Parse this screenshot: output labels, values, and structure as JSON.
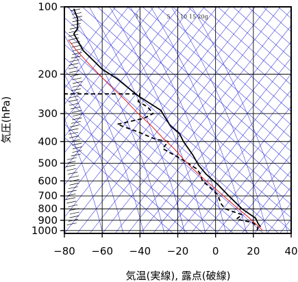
{
  "chart_data": {
    "type": "line",
    "subtype": "skew-T log-P thermodynamic diagram",
    "xlabel": "気温(実線), 露点(破線)",
    "ylabel": "気圧(hPa)",
    "xlim": [
      -80,
      40
    ],
    "ylim": [
      1030,
      100
    ],
    "y_scale": "log",
    "x_ticks": [
      -80,
      -60,
      -40,
      -20,
      0,
      20,
      40
    ],
    "x_tick_labels": [
      "−80",
      "−60",
      "−40",
      "−20",
      "0",
      "20",
      "40"
    ],
    "y_ticks": [
      100,
      200,
      300,
      400,
      500,
      600,
      700,
      800,
      900,
      1000
    ],
    "y_tick_labels": [
      "100",
      "200",
      "300",
      "400",
      "500",
      "600",
      "700",
      "800",
      "900",
      "1000"
    ],
    "mixing_ratio_labels": [
      "1",
      "5",
      "10",
      "15",
      "20g"
    ],
    "series": [
      {
        "role": "temperature",
        "style": "solid",
        "color": "#000000",
        "points": [
          [
            23.8,
            963
          ],
          [
            22.5,
            930
          ],
          [
            21.2,
            880
          ],
          [
            14,
            800
          ],
          [
            7,
            700
          ],
          [
            1,
            620
          ],
          [
            -5,
            560
          ],
          [
            -9,
            510
          ],
          [
            -12,
            460
          ],
          [
            -17,
            400
          ],
          [
            -19,
            370
          ],
          [
            -24,
            340
          ],
          [
            -29,
            290
          ],
          [
            -41,
            250
          ],
          [
            -52,
            210
          ],
          [
            -60,
            190
          ],
          [
            -70,
            157
          ],
          [
            -75,
            132
          ],
          [
            -73,
            125
          ],
          [
            -73,
            113
          ],
          [
            -75,
            102
          ]
        ]
      },
      {
        "role": "dewpoint",
        "style": "dashed",
        "color": "#000000",
        "points": [
          [
            22,
            995
          ],
          [
            22.5,
            960
          ],
          [
            19.5,
            920
          ],
          [
            11,
            890
          ],
          [
            14,
            850
          ],
          [
            5,
            800
          ],
          [
            3,
            760
          ],
          [
            1,
            690
          ],
          [
            -4,
            630
          ],
          [
            -7,
            600
          ],
          [
            -8,
            560
          ],
          [
            -10,
            530
          ],
          [
            -18,
            480
          ],
          [
            -28,
            430
          ],
          [
            -25,
            400
          ],
          [
            -32,
            390
          ],
          [
            -40,
            365
          ],
          [
            -52,
            335
          ],
          [
            -38,
            315
          ],
          [
            -33,
            300
          ],
          [
            -36,
            280
          ],
          [
            -41,
            265
          ],
          [
            -40,
            245
          ],
          [
            -80,
            245
          ]
        ]
      },
      {
        "role": "parcel",
        "style": "solid",
        "color": "#e03030",
        "points": [
          [
            25,
            1000
          ],
          [
            18,
            880
          ],
          [
            12,
            800
          ],
          [
            5,
            710
          ],
          [
            -1,
            640
          ],
          [
            -6,
            590
          ],
          [
            -12,
            530
          ],
          [
            -17,
            480
          ],
          [
            -22,
            430
          ],
          [
            -28,
            385
          ],
          [
            -34,
            340
          ],
          [
            -41,
            300
          ],
          [
            -48,
            260
          ],
          [
            -57,
            220
          ],
          [
            -67,
            180
          ],
          [
            -74,
            155
          ],
          [
            -78,
            140
          ]
        ]
      }
    ],
    "grid": true,
    "colors": {
      "background_lines": "#3a3ae0",
      "grid": "#000000",
      "temperature": "#000000",
      "dewpoint": "#000000",
      "parcel": "#e03030"
    }
  }
}
